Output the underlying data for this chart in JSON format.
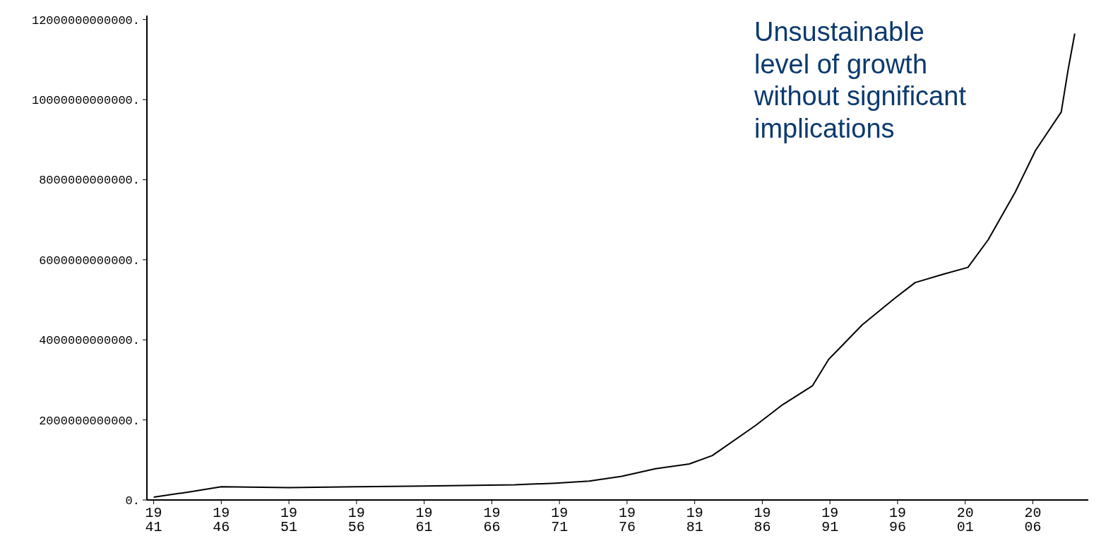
{
  "chart_data": {
    "type": "line",
    "annotations": [
      "Unsustainable\nlevel of growth\nwithout significant\nimplications"
    ],
    "x": [
      1941,
      1943.6,
      1946,
      1951,
      1956,
      1961,
      1967.7,
      1970.7,
      1973.2,
      1975.6,
      1978.1,
      1980.6,
      1982.3,
      1985.5,
      1987.5,
      1989.7,
      1990.9,
      1993.4,
      1995.8,
      1997.3,
      1999.3,
      2001.2,
      2002.7,
      2004.7,
      2006.2,
      2008.1,
      2008.6,
      2009.1
    ],
    "series": [
      {
        "color": "#000000",
        "values": [
          70000000000,
          200000000000,
          330000000000,
          310000000000,
          330000000000,
          350000000000,
          380000000000,
          420000000000,
          470000000000,
          590000000000,
          780000000000,
          900000000000,
          1110000000000,
          1860000000000,
          2380000000000,
          2850000000000,
          3510000000000,
          4380000000000,
          5040000000000,
          5430000000000,
          5630000000000,
          5810000000000,
          6500000000000,
          7690000000000,
          8730000000000,
          9690000000000,
          10730000000000,
          11650000000000
        ]
      }
    ],
    "xlim": [
      1940.5,
      2010.1
    ],
    "xticks": [
      {
        "value": 1941,
        "label": "1941"
      },
      {
        "value": 1946,
        "label": "1946"
      },
      {
        "value": 1951,
        "label": "1951"
      },
      {
        "value": 1956,
        "label": "1956"
      },
      {
        "value": 1961,
        "label": "1961"
      },
      {
        "value": 1966,
        "label": "1966"
      },
      {
        "value": 1971,
        "label": "1971"
      },
      {
        "value": 1976,
        "label": "1976"
      },
      {
        "value": 1981,
        "label": "1981"
      },
      {
        "value": 1986,
        "label": "1986"
      },
      {
        "value": 1991,
        "label": "1991"
      },
      {
        "value": 1996,
        "label": "1996"
      },
      {
        "value": 2001,
        "label": "2001"
      },
      {
        "value": 2006,
        "label": "2006"
      }
    ],
    "ylim": [
      0,
      12100000000000
    ],
    "yticks": [
      {
        "value": 0,
        "label": "0."
      },
      {
        "value": 2000000000000,
        "label": "2000000000000."
      },
      {
        "value": 4000000000000,
        "label": "4000000000000."
      },
      {
        "value": 6000000000000,
        "label": "6000000000000."
      },
      {
        "value": 8000000000000,
        "label": "8000000000000."
      },
      {
        "value": 10000000000000,
        "label": "10000000000000."
      },
      {
        "value": 12000000000000,
        "label": "12000000000000."
      }
    ],
    "line_style": "solid"
  }
}
